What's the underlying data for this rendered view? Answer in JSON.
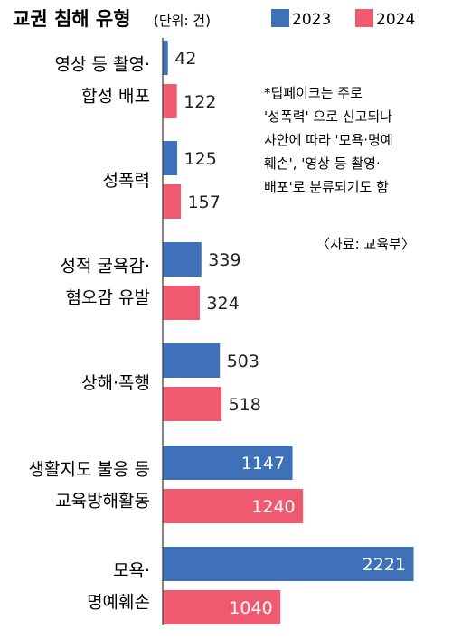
{
  "chart_data": {
    "type": "bar",
    "orientation": "horizontal",
    "title": "교권 침해 유형",
    "unit_label": "(단위: 건)",
    "legend_position": "top-right",
    "grid": false,
    "categories": [
      [
        "영상 등 촬영·",
        "합성 배포"
      ],
      [
        "성폭력"
      ],
      [
        "성적 굴욕감·",
        "혐오감 유발"
      ],
      [
        "상해·폭행"
      ],
      [
        "생활지도 불응 등",
        "교육방해활동"
      ],
      [
        "모욕·",
        "명예훼손"
      ]
    ],
    "series": [
      {
        "name": "2023",
        "color": "#3e71b8",
        "values": [
          42,
          125,
          339,
          503,
          1147,
          2221
        ]
      },
      {
        "name": "2024",
        "color": "#ef5a71",
        "values": [
          122,
          157,
          324,
          518,
          1240,
          1040
        ]
      }
    ],
    "annotation": [
      "*딥페이크는 주로",
      "'성폭력' 으로 신고되나",
      "사안에 따라 '모욕·명예",
      "훼손', '영상 등 촬영·",
      "배포'로 분류되기도 함"
    ],
    "source": "〈자료: 교육부〉"
  }
}
